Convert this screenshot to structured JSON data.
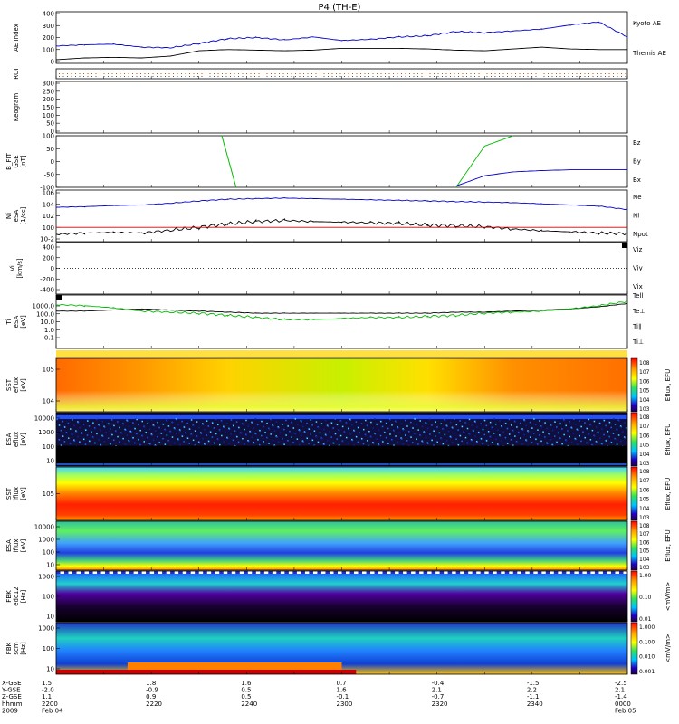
{
  "title": "P4 (TH-E)",
  "colors": {
    "kyoto": "#0000cc",
    "themis": "#000000",
    "red": "#cc0000",
    "green": "#00bb00",
    "blue": "#0000cc",
    "black": "#000000"
  },
  "chart_data": [
    {
      "type": "line",
      "ylabel": "AE Index",
      "yticks": [
        "400",
        "300",
        "200",
        "100",
        "0"
      ],
      "ylim": [
        0,
        400
      ],
      "legend": [
        "Kyoto AE",
        "Themis AE"
      ],
      "x_hours": [
        22.0,
        22.1,
        22.2,
        22.3,
        22.4,
        22.5,
        22.6,
        22.7,
        22.8,
        22.9,
        23.0,
        23.1,
        23.2,
        23.3,
        23.4,
        23.5,
        23.6,
        23.7,
        23.8,
        23.9,
        24.0
      ],
      "series": [
        {
          "name": "Kyoto AE",
          "values": [
            130,
            140,
            145,
            120,
            115,
            150,
            190,
            200,
            180,
            205,
            175,
            185,
            205,
            215,
            250,
            240,
            255,
            270,
            305,
            330,
            205
          ]
        },
        {
          "name": "Themis AE",
          "values": [
            15,
            30,
            35,
            30,
            45,
            90,
            100,
            95,
            90,
            95,
            110,
            110,
            110,
            105,
            95,
            90,
            105,
            120,
            105,
            100,
            100
          ]
        }
      ]
    },
    {
      "type": "heatmap",
      "ylabel": "ROI",
      "yticks": [],
      "note": "dotted rows"
    },
    {
      "type": "heatmap",
      "ylabel": "Keogram",
      "yticks": [
        "300",
        "250",
        "200",
        "150",
        "100",
        "50",
        "0"
      ]
    },
    {
      "type": "line",
      "ylabel": "B_FIT GSE [nT]",
      "yticks": [
        "100",
        "50",
        "0",
        "-50",
        "-100"
      ],
      "ylim": [
        -100,
        100
      ],
      "legend": [
        "Bz",
        "By",
        "Bx"
      ],
      "x_hours": [
        22.0,
        22.1,
        22.2,
        22.3,
        22.4,
        22.5,
        22.6,
        22.7,
        22.8,
        22.9,
        23.0,
        23.1,
        23.2,
        23.3,
        23.4,
        23.5,
        23.6,
        23.7,
        23.8,
        23.9,
        24.0
      ],
      "series": [
        {
          "name": "By",
          "values": [
            null,
            null,
            null,
            null,
            null,
            null,
            null,
            null,
            null,
            null,
            null,
            null,
            null,
            null,
            -100,
            60,
            100,
            null,
            null,
            null,
            null
          ]
        },
        {
          "name": "Bx",
          "values": [
            null,
            null,
            null,
            null,
            null,
            null,
            null,
            null,
            null,
            null,
            null,
            null,
            null,
            null,
            -95,
            -55,
            -40,
            -35,
            -32,
            -32,
            -32
          ]
        }
      ]
    },
    {
      "type": "line",
      "ylabel": "Ni eSA [1/cc]",
      "yticks": [
        "10^6",
        "10^4",
        "10^2",
        "10^0",
        "10^-2"
      ],
      "ylim_log": [
        -2.5,
        6.5
      ],
      "legend": [
        "Ne",
        "Ni",
        "Npot"
      ],
      "x_hours": [
        22.0,
        22.1,
        22.2,
        22.3,
        22.4,
        22.5,
        22.6,
        22.7,
        22.8,
        22.9,
        23.0,
        23.1,
        23.2,
        23.3,
        23.4,
        23.5,
        23.6,
        23.7,
        23.8,
        23.9,
        24.0
      ],
      "series": [
        {
          "name": "Npot (log10)",
          "values": [
            3.5,
            3.6,
            3.8,
            3.9,
            4.2,
            4.6,
            4.9,
            5.0,
            5.1,
            5.0,
            4.9,
            4.8,
            4.7,
            4.6,
            4.5,
            4.4,
            4.3,
            4.1,
            3.9,
            3.7,
            3.1
          ]
        },
        {
          "name": "Ni (log10)",
          "values": [
            -1.2,
            -1.0,
            -0.9,
            -1.0,
            -0.5,
            0.0,
            0.6,
            1.0,
            1.2,
            1.0,
            0.9,
            0.8,
            0.7,
            0.4,
            0.3,
            0.1,
            -0.3,
            -0.6,
            -0.8,
            -1.0,
            -1.1
          ]
        },
        {
          "name": "Ne (log10)",
          "values": [
            0.0,
            0.0,
            0.0,
            0.0,
            0.0,
            0.0,
            0.0,
            0.0,
            0.0,
            0.0,
            0.0,
            0.0,
            0.0,
            0.0,
            0.0,
            0.0,
            0.0,
            0.0,
            0.0,
            0.0,
            0.0
          ]
        }
      ]
    },
    {
      "type": "line",
      "ylabel": "Vi [km/s]",
      "yticks": [
        "400",
        "200",
        "0",
        "-200",
        "-400"
      ],
      "ylim": [
        -500,
        500
      ],
      "legend": [
        "Viz",
        "Viy",
        "Vix"
      ]
    },
    {
      "type": "line",
      "ylabel": "Ti eSA [eV]",
      "yticks": [
        "1000.0",
        "100.0",
        "10.0",
        "1.0",
        "0.1"
      ],
      "ylim_log": [
        -1.2,
        3.8
      ],
      "legend": [
        "Tell",
        "Te⊥",
        "Ti∥",
        "Ti⊥"
      ],
      "x_hours": [
        22.0,
        22.1,
        22.2,
        22.3,
        22.4,
        22.5,
        22.6,
        22.7,
        22.8,
        22.9,
        23.0,
        23.1,
        23.2,
        23.3,
        23.4,
        23.5,
        23.6,
        23.7,
        23.8,
        23.9,
        24.0
      ],
      "series": [
        {
          "name": "Ti",
          "values": [
            2.9,
            2.8,
            2.6,
            2.3,
            2.2,
            2.1,
            1.9,
            1.7,
            1.5,
            1.5,
            1.6,
            1.7,
            1.7,
            1.8,
            1.9,
            2.1,
            2.2,
            2.3,
            2.5,
            2.8,
            3.2
          ]
        },
        {
          "name": "Te",
          "values": [
            2.3,
            2.3,
            2.4,
            2.5,
            2.4,
            2.3,
            2.2,
            2.1,
            2.1,
            2.1,
            2.1,
            2.1,
            2.1,
            2.1,
            2.2,
            2.2,
            2.3,
            2.4,
            2.5,
            2.7,
            3.0
          ]
        }
      ]
    },
    {
      "type": "heatmap",
      "ylabel": "SST eflux [eV]",
      "yticks": [
        "10^5",
        "10^4"
      ],
      "colorbar": [
        "10^8",
        "10^7",
        "10^6",
        "10^5",
        "10^4",
        "10^3"
      ],
      "colorbar_label": "Eflux, EFU"
    },
    {
      "type": "heatmap",
      "ylabel": "ESA eflux [eV]",
      "yticks": [
        "10000",
        "1000",
        "100",
        "10"
      ],
      "colorbar": [
        "10^8",
        "10^7",
        "10^6",
        "10^5",
        "10^4",
        "10^3"
      ],
      "colorbar_label": "Eflux, EFU"
    },
    {
      "type": "heatmap",
      "ylabel": "SST iflux [eV]",
      "yticks": [
        "10^5"
      ],
      "colorbar": [
        "10^8",
        "10^7",
        "10^6",
        "10^5",
        "10^4",
        "10^3"
      ],
      "colorbar_label": "Eflux, EFU"
    },
    {
      "type": "heatmap",
      "ylabel": "ESA iflux [eV]",
      "yticks": [
        "10000",
        "1000",
        "100",
        "10"
      ],
      "colorbar": [
        "10^8",
        "10^7",
        "10^6",
        "10^5",
        "10^4",
        "10^3"
      ],
      "colorbar_label": "Eflux, EFU"
    },
    {
      "type": "heatmap",
      "ylabel": "FBK edc12 [Hz]",
      "yticks": [
        "1000",
        "100",
        "10"
      ],
      "colorbar": [
        "1.00",
        "0.10",
        "0.01"
      ],
      "colorbar_label": "<mV/m>"
    },
    {
      "type": "heatmap",
      "ylabel": "FBK scm [Hz]",
      "yticks": [
        "1000",
        "100",
        "10"
      ],
      "colorbar": [
        "1.000",
        "0.100",
        "0.010",
        "0.001"
      ],
      "colorbar_label": "<mV/m>"
    }
  ],
  "xaxis": {
    "row_labels": [
      "X-GSE",
      "Y-GSE",
      "Z-GSE",
      "hhmm",
      "2009"
    ],
    "columns": [
      [
        "1.5",
        "-2.0",
        "1.1",
        "2200",
        "Feb 04"
      ],
      [
        "1.8",
        "-0.9",
        "0.9",
        "2220",
        ""
      ],
      [
        "1.6",
        "0.5",
        "0.5",
        "2240",
        ""
      ],
      [
        "0.7",
        "1.6",
        "-0.1",
        "2300",
        ""
      ],
      [
        "-0.4",
        "2.1",
        "-0.7",
        "2320",
        ""
      ],
      [
        "-1.5",
        "2.2",
        "-1.1",
        "2340",
        ""
      ],
      [
        "-2.5",
        "2.1",
        "-1.4",
        "0000",
        "Feb 05"
      ]
    ]
  }
}
